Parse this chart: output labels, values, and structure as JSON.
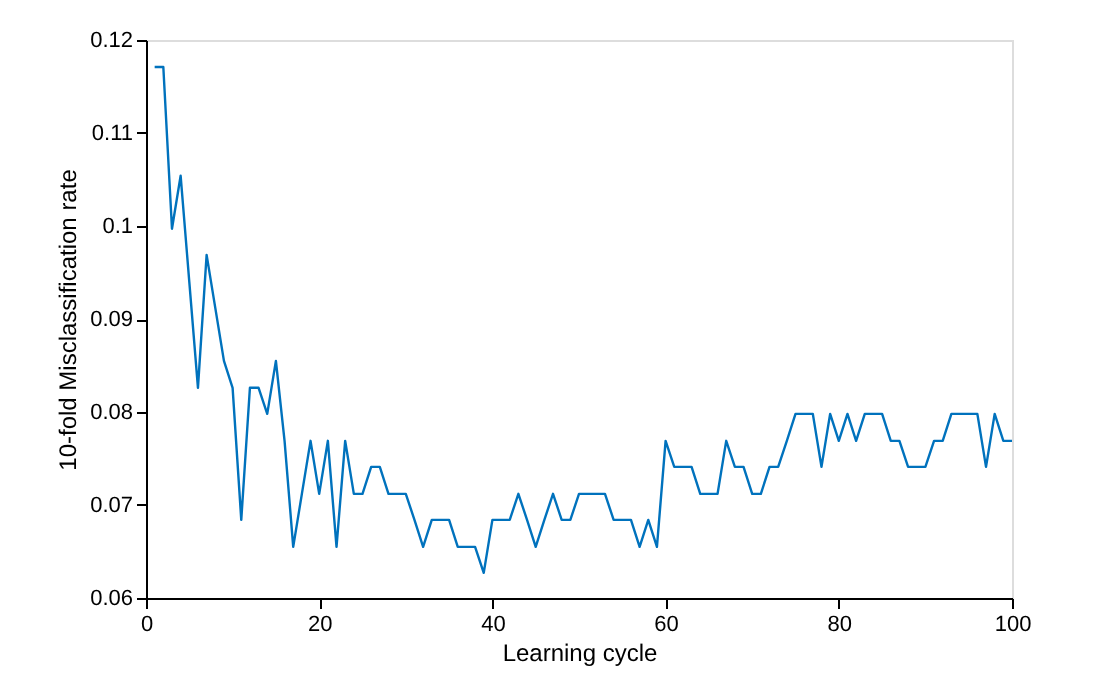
{
  "chart_data": {
    "type": "line",
    "xlabel": "Learning cycle",
    "ylabel": "10-fold Misclassification rate",
    "x": [
      1,
      2,
      3,
      4,
      5,
      6,
      7,
      8,
      9,
      10,
      11,
      12,
      13,
      14,
      15,
      16,
      17,
      18,
      19,
      20,
      21,
      22,
      23,
      24,
      25,
      26,
      27,
      28,
      29,
      30,
      31,
      32,
      33,
      34,
      35,
      36,
      37,
      38,
      39,
      40,
      41,
      42,
      43,
      44,
      45,
      46,
      47,
      48,
      49,
      50,
      51,
      52,
      53,
      54,
      55,
      56,
      57,
      58,
      59,
      60,
      61,
      62,
      63,
      64,
      65,
      66,
      67,
      68,
      69,
      70,
      71,
      72,
      73,
      74,
      75,
      76,
      77,
      78,
      79,
      80,
      81,
      82,
      83,
      84,
      85,
      86,
      87,
      88,
      89,
      90,
      91,
      92,
      93,
      94,
      95,
      96,
      97,
      98,
      99,
      100
    ],
    "series": [
      {
        "color": "#0072bd",
        "values": [
          0.1171,
          0.1171,
          0.0997,
          0.1054,
          0.094,
          0.0826,
          0.0969,
          0.0912,
          0.0855,
          0.0826,
          0.0684,
          0.0826,
          0.0826,
          0.0798,
          0.0855,
          0.0769,
          0.0655,
          0.0712,
          0.0769,
          0.0712,
          0.0769,
          0.0655,
          0.0769,
          0.0712,
          0.0712,
          0.0741,
          0.0741,
          0.0712,
          0.0712,
          0.0712,
          0.0684,
          0.0655,
          0.0684,
          0.0684,
          0.0684,
          0.0655,
          0.0655,
          0.0655,
          0.0627,
          0.0684,
          0.0684,
          0.0684,
          0.0712,
          0.0684,
          0.0655,
          0.0684,
          0.0712,
          0.0684,
          0.0684,
          0.0712,
          0.0712,
          0.0712,
          0.0712,
          0.0684,
          0.0684,
          0.0684,
          0.0655,
          0.0684,
          0.0655,
          0.0769,
          0.0741,
          0.0741,
          0.0741,
          0.0712,
          0.0712,
          0.0712,
          0.0769,
          0.0741,
          0.0741,
          0.0712,
          0.0712,
          0.0741,
          0.0741,
          0.0769,
          0.0798,
          0.0798,
          0.0798,
          0.0741,
          0.0798,
          0.0769,
          0.0798,
          0.0769,
          0.0798,
          0.0798,
          0.0798,
          0.0769,
          0.0769,
          0.0741,
          0.0741,
          0.0741,
          0.0769,
          0.0769,
          0.0798,
          0.0798,
          0.0798,
          0.0798,
          0.0741,
          0.0798,
          0.0769,
          0.0769
        ]
      }
    ],
    "xlim": [
      0,
      100
    ],
    "xticks": [
      0,
      20,
      40,
      60,
      80,
      100
    ],
    "ylim": [
      0.06,
      0.12
    ],
    "yticks": [
      0.06,
      0.07,
      0.08,
      0.09,
      0.1,
      0.11,
      0.12
    ],
    "grid": false,
    "marker": "none",
    "line_style": "solid"
  }
}
